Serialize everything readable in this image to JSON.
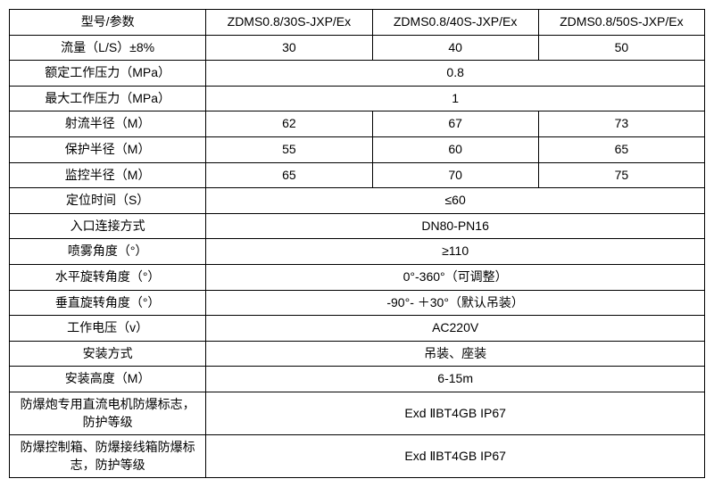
{
  "table": {
    "header": {
      "param_label": "型号/参数",
      "models": [
        "ZDMS0.8/30S-JXP/Ex",
        "ZDMS0.8/40S-JXP/Ex",
        "ZDMS0.8/50S-JXP/Ex"
      ]
    },
    "rows": [
      {
        "label": "流量（L/S）±8%",
        "type": "split",
        "values": [
          "30",
          "40",
          "50"
        ]
      },
      {
        "label": "额定工作压力（MPa）",
        "type": "merged",
        "value": "0.8"
      },
      {
        "label": "最大工作压力（MPa）",
        "type": "merged",
        "value": "1"
      },
      {
        "label": "射流半径（M）",
        "type": "split",
        "values": [
          "62",
          "67",
          "73"
        ]
      },
      {
        "label": "保护半径（M）",
        "type": "split",
        "values": [
          "55",
          "60",
          "65"
        ]
      },
      {
        "label": "监控半径（M）",
        "type": "split",
        "values": [
          "65",
          "70",
          "75"
        ]
      },
      {
        "label": "定位时间（S）",
        "type": "merged",
        "value": "≤60"
      },
      {
        "label": "入口连接方式",
        "type": "merged",
        "value": "DN80-PN16"
      },
      {
        "label": "喷雾角度（°）",
        "type": "merged",
        "value": "≥110"
      },
      {
        "label": "水平旋转角度（°）",
        "type": "merged",
        "value": "0°-360°（可调整）"
      },
      {
        "label": "垂直旋转角度（°）",
        "type": "merged",
        "value": "-90°- ＋30°（默认吊装）"
      },
      {
        "label": "工作电压（v）",
        "type": "merged",
        "value": "AC220V"
      },
      {
        "label": "安装方式",
        "type": "merged",
        "value": "吊装、座装"
      },
      {
        "label": "安装高度（M）",
        "type": "merged",
        "value": "6-15m"
      },
      {
        "label": "防爆炮专用直流电机防爆标志，防护等级",
        "type": "merged",
        "value": "Exd ⅡBT4GB IP67",
        "multiline": true
      },
      {
        "label": "防爆控制箱、防爆接线箱防爆标志，防护等级",
        "type": "merged",
        "value": "Exd ⅡBT4GB IP67",
        "multiline": true
      }
    ],
    "styles": {
      "border_color": "#000000",
      "text_color": "#000000",
      "background": "#ffffff",
      "font_size": 14,
      "col_param_width": 220,
      "col_val_width": 186
    }
  }
}
